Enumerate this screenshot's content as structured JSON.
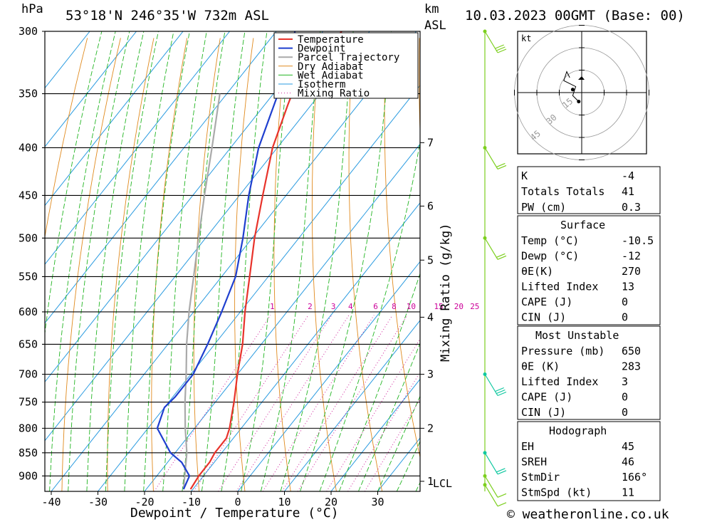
{
  "header": {
    "hpa_unit": "hPa",
    "location": "53°18'N  246°35'W  732m  ASL",
    "km_unit": "km",
    "asl_unit": "ASL",
    "datetime": "10.03.2023  00GMT  (Base: 00)"
  },
  "axes": {
    "xlabel": "Dewpoint / Temperature (°C)",
    "mixing_label": "Mixing Ratio (g/kg)",
    "lcl_label": "LCL",
    "kt_label": "kt",
    "credit": "© weatheronline.co.uk"
  },
  "colors": {
    "temperature": "#e8332b",
    "dewpoint": "#1f3fcf",
    "parcel": "#aaaaaa",
    "dry_adiabat": "#e08a1e",
    "wet_adiabat": "#22b522",
    "isotherm": "#2a9be0",
    "mixing_ratio": "#d0209a",
    "wind": "#7ccf1e",
    "wind_low": "#10c8a0"
  },
  "chart_data": {
    "type": "skew-t",
    "pressure_levels_hpa": [
      300,
      350,
      400,
      450,
      500,
      550,
      600,
      650,
      700,
      750,
      800,
      850,
      900
    ],
    "temperature_ticks_c": [
      -40,
      -30,
      -20,
      -10,
      0,
      10,
      20,
      30
    ],
    "height_ticks_km": [
      {
        "km": "7",
        "p": 395
      },
      {
        "km": "6",
        "p": 462
      },
      {
        "km": "5",
        "p": 528
      },
      {
        "km": "4",
        "p": 608
      },
      {
        "km": "3",
        "p": 700
      },
      {
        "km": "2",
        "p": 800
      },
      {
        "km": "1",
        "p": 912
      }
    ],
    "mixing_ratio_labels": [
      "1",
      "2",
      "3",
      "4",
      "6",
      "8",
      "10",
      "15",
      "20",
      "25"
    ],
    "mixing_ratio_values": [
      1,
      2,
      3,
      4,
      6,
      8,
      10,
      15,
      20,
      25
    ],
    "legend": [
      "Temperature",
      "Dewpoint",
      "Parcel Trajectory",
      "Dry Adiabat",
      "Wet Adiabat",
      "Isotherm",
      "Mixing Ratio"
    ],
    "temperature_profile": [
      {
        "p": 930,
        "t": -10.5
      },
      {
        "p": 900,
        "t": -11
      },
      {
        "p": 870,
        "t": -11
      },
      {
        "p": 850,
        "t": -11.5
      },
      {
        "p": 820,
        "t": -11.5
      },
      {
        "p": 800,
        "t": -12.5
      },
      {
        "p": 750,
        "t": -16
      },
      {
        "p": 700,
        "t": -20
      },
      {
        "p": 650,
        "t": -24
      },
      {
        "p": 600,
        "t": -29
      },
      {
        "p": 550,
        "t": -34
      },
      {
        "p": 500,
        "t": -39.5
      },
      {
        "p": 450,
        "t": -45
      },
      {
        "p": 400,
        "t": -51
      },
      {
        "p": 360,
        "t": -55
      },
      {
        "p": 350,
        "t": -56
      },
      {
        "p": 300,
        "t": -56
      }
    ],
    "dewpoint_profile": [
      {
        "p": 930,
        "t": -12
      },
      {
        "p": 900,
        "t": -13
      },
      {
        "p": 870,
        "t": -17
      },
      {
        "p": 850,
        "t": -21
      },
      {
        "p": 800,
        "t": -28
      },
      {
        "p": 760,
        "t": -30
      },
      {
        "p": 740,
        "t": -29.5
      },
      {
        "p": 700,
        "t": -29.5
      },
      {
        "p": 650,
        "t": -31.5
      },
      {
        "p": 600,
        "t": -34
      },
      {
        "p": 550,
        "t": -37
      },
      {
        "p": 500,
        "t": -42
      },
      {
        "p": 450,
        "t": -48
      },
      {
        "p": 400,
        "t": -54
      },
      {
        "p": 350,
        "t": -59
      },
      {
        "p": 300,
        "t": -66
      }
    ],
    "parcel_profile": [
      {
        "p": 930,
        "t": -12
      },
      {
        "p": 900,
        "t": -14
      },
      {
        "p": 850,
        "t": -17.5
      },
      {
        "p": 800,
        "t": -22
      },
      {
        "p": 750,
        "t": -26.5
      },
      {
        "p": 700,
        "t": -31
      },
      {
        "p": 650,
        "t": -36
      },
      {
        "p": 600,
        "t": -41
      },
      {
        "p": 550,
        "t": -46
      },
      {
        "p": 500,
        "t": -51.5
      },
      {
        "p": 450,
        "t": -57.5
      },
      {
        "p": 400,
        "t": -64
      },
      {
        "p": 350,
        "t": -71.5
      }
    ],
    "wind_barbs": [
      {
        "p": 300,
        "dir": 250,
        "kt": 30
      },
      {
        "p": 400,
        "dir": 260,
        "kt": 20
      },
      {
        "p": 500,
        "dir": 255,
        "kt": 15
      },
      {
        "p": 700,
        "dir": 250,
        "kt": 25
      },
      {
        "p": 850,
        "dir": 240,
        "kt": 15
      },
      {
        "p": 900,
        "dir": 220,
        "kt": 10
      },
      {
        "p": 920,
        "dir": 200,
        "kt": 10
      }
    ],
    "hodograph": {
      "rings_kt": [
        "15",
        "30",
        "45"
      ],
      "points_uv": [
        [
          -1,
          -3
        ],
        [
          -3,
          -1
        ],
        [
          -2,
          2
        ],
        [
          -6,
          4
        ],
        [
          -5,
          7
        ],
        [
          -4,
          5
        ]
      ]
    }
  },
  "indices": {
    "block1": [
      {
        "label": "K",
        "value": "-4"
      },
      {
        "label": "Totals Totals",
        "value": "41"
      },
      {
        "label": "PW (cm)",
        "value": "0.3"
      }
    ],
    "surface_title": "Surface",
    "surface": [
      {
        "label": "Temp (°C)",
        "value": "-10.5"
      },
      {
        "label": "Dewp (°C)",
        "value": "-12"
      },
      {
        "label": "θE(K)",
        "value": "270"
      },
      {
        "label": "Lifted Index",
        "value": "13"
      },
      {
        "label": "CAPE (J)",
        "value": "0"
      },
      {
        "label": "CIN (J)",
        "value": "0"
      }
    ],
    "mu_title": "Most Unstable",
    "mu": [
      {
        "label": "Pressure (mb)",
        "value": "650"
      },
      {
        "label": "θE (K)",
        "value": "283"
      },
      {
        "label": "Lifted Index",
        "value": "3"
      },
      {
        "label": "CAPE (J)",
        "value": "0"
      },
      {
        "label": "CIN (J)",
        "value": "0"
      }
    ],
    "hodo_title": "Hodograph",
    "hodo": [
      {
        "label": "EH",
        "value": "45"
      },
      {
        "label": "SREH",
        "value": "46"
      },
      {
        "label": "StmDir",
        "value": "166°"
      },
      {
        "label": "StmSpd (kt)",
        "value": "11"
      }
    ]
  }
}
